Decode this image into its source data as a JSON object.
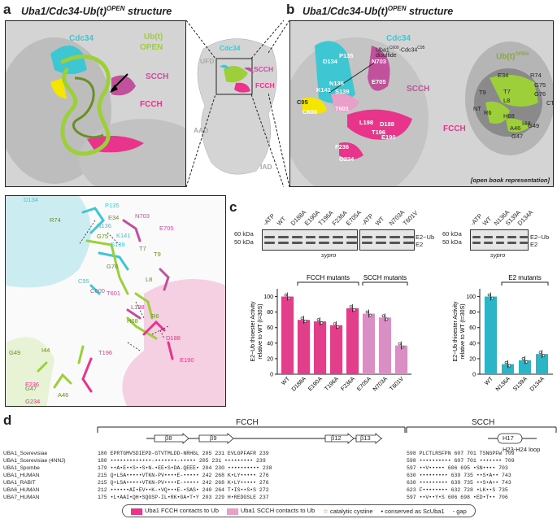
{
  "panels": {
    "a": {
      "letter": "a",
      "title": "Uba1/Cdc34-Ub(t)",
      "sup": "OPEN",
      "title_end": " structure"
    },
    "b": {
      "letter": "b",
      "title": "Uba1/Cdc34-Ub(t)",
      "sup": "OPEN",
      "title_end": " structure"
    },
    "c": {
      "letter": "c"
    },
    "d": {
      "letter": "d"
    }
  },
  "panel_a": {
    "cdc34": "Cdc34",
    "ubt": "Ub(t)",
    "open": "OPEN",
    "scch": "SCCH",
    "fcch": "FCCH",
    "overview": {
      "ufd": "UFD",
      "cdc34": "Cdc34",
      "scch": "SCCH",
      "fcch": "FCCH",
      "aad": "AAD",
      "iad": "IAD"
    }
  },
  "panel_b": {
    "cdc34": "Cdc34",
    "scch": "SCCH",
    "fcch": "FCCH",
    "disulfide_line1": "Uba1",
    "disulfide_sup1": "C600",
    "disulfide_mid": "-Cdc34",
    "disulfide_sup2": "C95",
    "disulfide_line2": "disulfide",
    "ub_title": "Ub(t)",
    "ub_sup": "OPEN",
    "open_book": "[open book representation]",
    "residues": [
      "D134",
      "P135",
      "N703",
      "N136",
      "K141",
      "S139",
      "C95",
      "C600",
      "T601",
      "E705",
      "L198",
      "D188",
      "T196",
      "E190",
      "F236",
      "G234"
    ],
    "ub_residues": [
      "E34",
      "R74",
      "G75",
      "G76",
      "T9",
      "T7",
      "L8",
      "R6",
      "H68",
      "NT",
      "CT",
      "I44",
      "A46",
      "G47",
      "G49"
    ]
  },
  "panel_a2": {
    "residues": [
      "D134",
      "P135",
      "N703",
      "R74",
      "E34",
      "N136",
      "K141",
      "E705",
      "G75",
      "S139",
      "T7",
      "T9",
      "G76",
      "C95",
      "C600",
      "L8",
      "T601",
      "L198",
      "R6",
      "H68",
      "G49",
      "I44",
      "F236",
      "D188",
      "T196",
      "G47",
      "A46",
      "E190",
      "G234"
    ]
  },
  "panel_c": {
    "gel1_lanes": [
      "-ATP",
      "WT",
      "D188A",
      "E190A",
      "T196A",
      "F236A",
      "E705A"
    ],
    "gel2_lanes": [
      "-ATP",
      "WT",
      "N703A",
      "T601V"
    ],
    "gel3_lanes": [
      "-ATP",
      "WT",
      "N136A",
      "S139A",
      "D134A"
    ],
    "markers": [
      "60 kDa",
      "50 kDa"
    ],
    "band_labels": [
      "E2~Ub",
      "E2"
    ],
    "stain": "sypro",
    "group_fcch": "FCCH mutants",
    "group_scch": "SCCH mutants",
    "group_e2": "E2 mutants",
    "ylabel1": "E2~Ub thioester Activity",
    "ylabel2": "relative to WT (t=30S)",
    "yticks": [
      "0",
      "20",
      "40",
      "60",
      "80",
      "100"
    ]
  },
  "chart_data": [
    {
      "type": "bar",
      "categories": [
        "WT",
        "D188A",
        "E190A",
        "T196A",
        "F236A",
        "E705A",
        "N703A",
        "T601V"
      ],
      "values": [
        100,
        70,
        68,
        63,
        85,
        78,
        73,
        37
      ],
      "ylabel": "E2~Ub thioester Activity relative to WT (t=30S)",
      "ylim": [
        0,
        110
      ],
      "colors": [
        "#e23f8a",
        "#e23f8a",
        "#e23f8a",
        "#e23f8a",
        "#e23f8a",
        "#d98fc4",
        "#d98fc4",
        "#d98fc4"
      ]
    },
    {
      "type": "bar",
      "categories": [
        "WT",
        "N136A",
        "S139A",
        "D134A"
      ],
      "values": [
        100,
        13,
        18,
        26
      ],
      "ylabel": "E2~Ub thioester Activity relative to WT (t=30S)",
      "ylim": [
        0,
        110
      ],
      "colors": [
        "#2cb5c6",
        "#2cb5c6",
        "#2cb5c6",
        "#2cb5c6"
      ]
    }
  ],
  "panel_d": {
    "fcch": "FCCH",
    "scch": "SCCH",
    "b8": "β8",
    "b9": "β9",
    "b12": "β12",
    "b13": "β13",
    "h17": "H17",
    "loop": "H23-H24 loop",
    "rows": [
      {
        "name": "UBA1_Scerevisiae",
        "seq1": "180 EPRTGMVSDIEPD-GTVTMLDD-NRHGL 205 231 EVLGPFAFR 239",
        "seq2": "598 PLCTLRSFPN 607 701 TSNGPFW 709"
      },
      {
        "name": "UBA1_Scerevisiae (4NNJ)",
        "seq1": "180 •••••••••••••-•••••••-••••• 205 231 ••••••••• 239",
        "seq2": "598 •••••••••• 607 701 ••••••• 709"
      },
      {
        "name": "UBA1_Spombe",
        "seq1": "179 ••A•E••S••S•N-•EE•S•DA-QEEE• 204 230 •••••••••• 238",
        "seq2": "597 ••V••••• 606 695 •SN•••• 703"
      },
      {
        "name": "UBA1_HUMAN",
        "seq1": "215 Q•LSA•••••VTKN-PV••••E-••••• 242 268 K•LY••••• 276",
        "seq2": "630 ••••••••• 639 735 ••S•A•• 743"
      },
      {
        "name": "UBA1_RABIT",
        "seq1": "215 Q•LSA•••••VTKN-PV••••E-••••• 242 268 K•LY••••• 276",
        "seq2": "630 ••••••••• 639 735 ••S•A•• 743"
      },
      {
        "name": "UBA6_HUMAN",
        "seq1": "212 ••••••AI•EV••K-•VQ•••E-•SAS• 240 264 T•IS••S•S 272",
        "seq2": "623 F•••••••• 632 728 •LK••S 735"
      },
      {
        "name": "UBA7_HUMAN",
        "seq1": "175 •L•AAI•QH•SQGSP-IL•RK•GA•T•Y 203 229 H•REDGSLE 237",
        "seq2": "597 ••V••Y•S 606 698 •ED•T•• 706"
      }
    ],
    "legend": [
      "Uba1 FCCH contacts to Ub",
      "Uba1 SCCH contacts to Ub",
      "catalytic cystine",
      "conserved as ScUba1",
      "gap"
    ],
    "legend_symbols": [
      "☆",
      "•",
      "-"
    ]
  },
  "colors": {
    "cdc34": "#3ec6d3",
    "ub": "#9ccf3a",
    "scch": "#c2519b",
    "fcch": "#e8348b",
    "scch_light": "#d98fc4",
    "yellow": "#f4e600"
  }
}
